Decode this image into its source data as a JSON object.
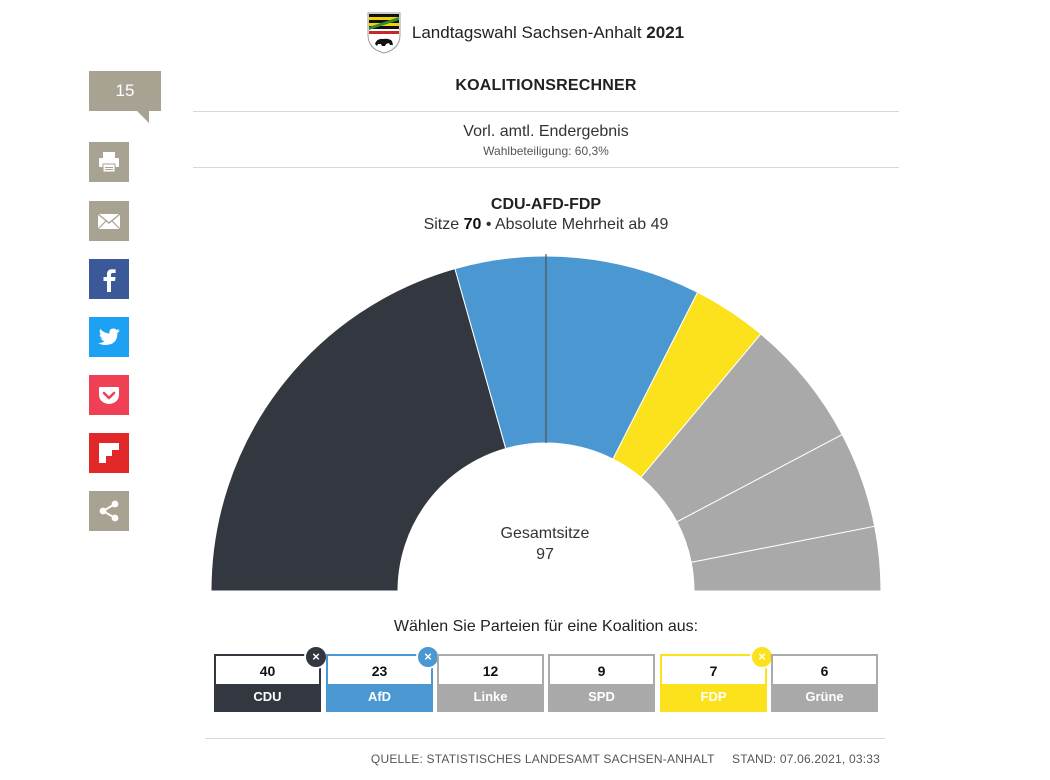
{
  "header": {
    "title": "Landtagswahl Sachsen-Anhalt ",
    "year": "2021"
  },
  "share": {
    "count": "15",
    "buttons": [
      {
        "name": "print-button",
        "icon": "print-icon",
        "color": "#a8a293"
      },
      {
        "name": "email-button",
        "icon": "mail-icon",
        "color": "#a8a293"
      },
      {
        "name": "facebook-button",
        "icon": "facebook-icon",
        "color": "#3b5998"
      },
      {
        "name": "twitter-button",
        "icon": "twitter-icon",
        "color": "#1da1f2"
      },
      {
        "name": "pocket-button",
        "icon": "pocket-icon",
        "color": "#ef4056"
      },
      {
        "name": "flipboard-button",
        "icon": "flipboard-icon",
        "color": "#e12828"
      },
      {
        "name": "share-button",
        "icon": "share-icon",
        "color": "#a8a293"
      }
    ]
  },
  "section": {
    "title": "KOALITIONSRECHNER"
  },
  "result": {
    "status": "Vorl. amtl. Endergebnis",
    "turnout": "Wahlbeteiligung: 60,3%"
  },
  "coalition": {
    "name": "CDU-AFD-FDP",
    "seats_prefix": "Sitze ",
    "seats": "70",
    "majority_text": " • Absolute Mehrheit ab 49"
  },
  "center": {
    "label": "Gesamtsitze",
    "total": "97"
  },
  "choose_label": "Wählen Sie Parteien für eine Koalition aus:",
  "footer": {
    "source": "QUELLE: STATISTISCHES LANDESAMT SACHSEN-ANHALT",
    "date": "STAND: 07.06.2021, 03:33"
  },
  "chart_data": {
    "type": "pie",
    "variant": "semicircle-parliament",
    "total": 97,
    "majority": 49,
    "majority_marker": "center",
    "categories": [
      "CDU",
      "AfD",
      "Linke",
      "SPD",
      "FDP",
      "Grüne"
    ],
    "values": [
      40,
      23,
      12,
      9,
      7,
      6
    ],
    "colors": [
      "#333740",
      "#4b97d2",
      "#a9a9a9",
      "#a9a9a9",
      "#fce21d",
      "#a9a9a9"
    ],
    "party_colors": [
      "#333740",
      "#4b97d2",
      "#a9a9a9",
      "#a9a9a9",
      "#fce21d",
      "#a9a9a9"
    ],
    "selected": [
      true,
      true,
      false,
      false,
      true,
      false
    ],
    "order": [
      "CDU",
      "AfD",
      "FDP",
      "Linke",
      "SPD",
      "Grüne"
    ]
  }
}
